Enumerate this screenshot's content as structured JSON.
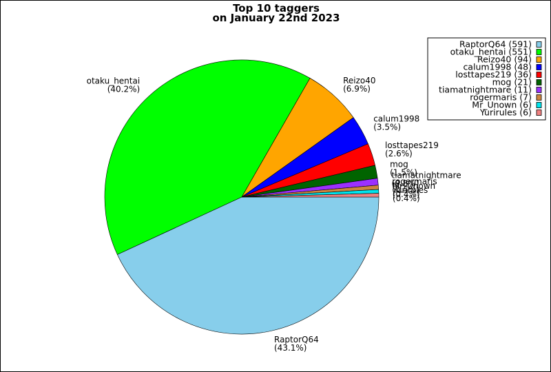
{
  "chart_data": {
    "type": "pie",
    "title": [
      "Top 10 taggers",
      "on January 22nd 2023"
    ],
    "slices": [
      {
        "name": "RaptorQ64",
        "value": 591,
        "pct_label": "(43.1%)",
        "legend": "RaptorQ64 (591)",
        "color": "#87CEEB"
      },
      {
        "name": "otaku_hentai",
        "value": 551,
        "pct_label": "(40.2%)",
        "legend": "otaku_hentai (551)",
        "color": "#00FF00"
      },
      {
        "name": "Reizo40",
        "value": 94,
        "pct_label": "(6.9%)",
        "legend": "Reizo40 (94)",
        "color": "#FFA500"
      },
      {
        "name": "calum1998",
        "value": 48,
        "pct_label": "(3.5%)",
        "legend": "calum1998 (48)",
        "color": "#0000FF"
      },
      {
        "name": "losttapes219",
        "value": 36,
        "pct_label": "(2.6%)",
        "legend": "losttapes219 (36)",
        "color": "#FF0000"
      },
      {
        "name": "mog",
        "value": 21,
        "pct_label": "(1.5%)",
        "legend": "mog (21)",
        "color": "#006400"
      },
      {
        "name": "tiamatnightmare",
        "value": 11,
        "pct_label": "(0.8%)",
        "legend": "tiamatnightmare (11)",
        "color": "#9B30FF"
      },
      {
        "name": "rogermaris",
        "value": 7,
        "pct_label": "(0.5%)",
        "legend": "rogermaris (7)",
        "color": "#CD853F"
      },
      {
        "name": "Mr_Unown",
        "value": 6,
        "pct_label": "(0.4%)",
        "legend": "Mr_Unown (6)",
        "color": "#00E5EE"
      },
      {
        "name": "Yurirules",
        "value": 6,
        "pct_label": "(0.4%)",
        "legend": "Yurirules (6)",
        "color": "#F08080"
      }
    ],
    "start_angle_deg": 0,
    "direction": "clockwise",
    "legend_position": "top-right"
  }
}
